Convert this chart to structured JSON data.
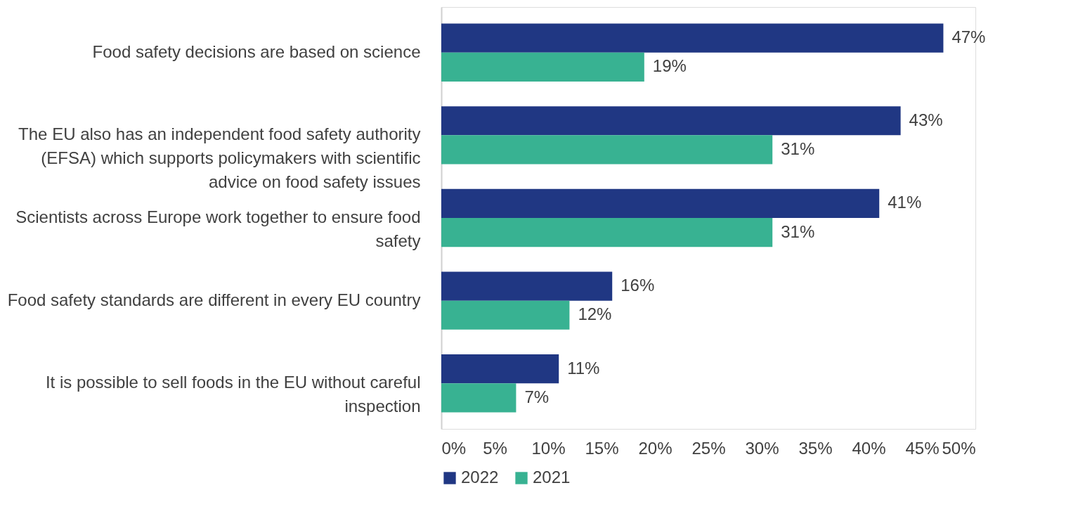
{
  "chart_data": {
    "type": "bar",
    "orientation": "horizontal",
    "categories": [
      "Food safety decisions are based on science",
      "The EU also has an independent food safety authority (EFSA) which supports policymakers with scientific advice on food safety issues",
      "Scientists across Europe work together to ensure food safety",
      "Food safety standards are different in every EU country",
      "It is possible to sell foods in the EU without careful inspection"
    ],
    "series": [
      {
        "name": "2022",
        "color": "#203783",
        "values": [
          47,
          43,
          41,
          16,
          11
        ],
        "value_labels": [
          "47%",
          "43%",
          "41%",
          "16%",
          "11%"
        ]
      },
      {
        "name": "2021",
        "color": "#38b292",
        "values": [
          19,
          31,
          31,
          12,
          7
        ],
        "value_labels": [
          "19%",
          "31%",
          "31%",
          "12%",
          "7%"
        ]
      }
    ],
    "xlim": [
      0,
      50
    ],
    "xticks": [
      {
        "value": 0,
        "label": "0%"
      },
      {
        "value": 5,
        "label": "5%"
      },
      {
        "value": 10,
        "label": "10%"
      },
      {
        "value": 15,
        "label": "15%"
      },
      {
        "value": 20,
        "label": "20%"
      },
      {
        "value": 25,
        "label": "25%"
      },
      {
        "value": 30,
        "label": "30%"
      },
      {
        "value": 35,
        "label": "35%"
      },
      {
        "value": 40,
        "label": "40%"
      },
      {
        "value": 45,
        "label": "45%"
      },
      {
        "value": 50,
        "label": "50%"
      }
    ],
    "grid": false,
    "legend": "bottom"
  }
}
